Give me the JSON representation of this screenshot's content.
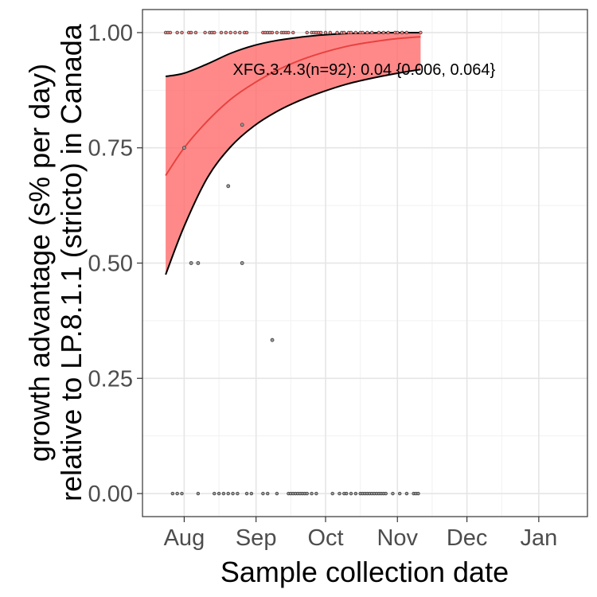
{
  "chart_data": {
    "type": "line",
    "xlabel": "Sample collection date",
    "ylabel_line1": "growth advantage (s% per day)",
    "ylabel_line2": "relative to LP.8.1.1 (stricto) in Canada",
    "x_axis": {
      "type": "date",
      "range": [
        "2025-07-14",
        "2026-01-22"
      ]
    },
    "y_axis": {
      "range": [
        -0.05,
        1.05
      ]
    },
    "x_ticks": [
      {
        "date": "2025-08-01",
        "label": "Aug"
      },
      {
        "date": "2025-09-01",
        "label": "Sep"
      },
      {
        "date": "2025-10-01",
        "label": "Oct"
      },
      {
        "date": "2025-11-01",
        "label": "Nov"
      },
      {
        "date": "2025-12-01",
        "label": "Dec"
      },
      {
        "date": "2026-01-01",
        "label": "Jan"
      }
    ],
    "y_ticks": [
      {
        "value": 0,
        "label": "0.00"
      },
      {
        "value": 0.25,
        "label": "0.25"
      },
      {
        "value": 0.5,
        "label": "0.50"
      },
      {
        "value": 0.75,
        "label": "0.75"
      },
      {
        "value": 1,
        "label": "1.00"
      }
    ],
    "grid": true,
    "annotation": {
      "text": "XFG.3.4.3(n=92): 0.04 {0.006, 0.064}",
      "date": "2025-08-22",
      "value": 0.908
    },
    "series": [
      {
        "type": "ribbon",
        "color": "#ff6b6b",
        "fill_opacity": 0.8,
        "points": [
          {
            "date": "2025-07-24",
            "fit": 0.69,
            "lower": 0.475,
            "upper": 0.905
          },
          {
            "date": "2025-08-01",
            "fit": 0.75,
            "lower": 0.58,
            "upper": 0.912
          },
          {
            "date": "2025-08-11",
            "fit": 0.808,
            "lower": 0.685,
            "upper": 0.932
          },
          {
            "date": "2025-08-21",
            "fit": 0.855,
            "lower": 0.752,
            "upper": 0.955
          },
          {
            "date": "2025-08-31",
            "fit": 0.89,
            "lower": 0.797,
            "upper": 0.972
          },
          {
            "date": "2025-09-10",
            "fit": 0.918,
            "lower": 0.829,
            "upper": 0.983
          },
          {
            "date": "2025-09-20",
            "fit": 0.94,
            "lower": 0.853,
            "upper": 0.99
          },
          {
            "date": "2025-09-30",
            "fit": 0.957,
            "lower": 0.872,
            "upper": 0.995
          },
          {
            "date": "2025-10-10",
            "fit": 0.97,
            "lower": 0.888,
            "upper": 0.998
          },
          {
            "date": "2025-10-20",
            "fit": 0.979,
            "lower": 0.9,
            "upper": 0.999
          },
          {
            "date": "2025-10-30",
            "fit": 0.986,
            "lower": 0.91,
            "upper": 1.0
          },
          {
            "date": "2025-11-11",
            "fit": 0.991,
            "lower": 0.92,
            "upper": 1.0
          }
        ]
      },
      {
        "type": "scatter",
        "color": "#3a3a3a",
        "points": [
          {
            "date": "2025-07-24",
            "value": 1
          },
          {
            "date": "2025-07-25",
            "value": 1
          },
          {
            "date": "2025-07-26",
            "value": 1
          },
          {
            "date": "2025-07-29",
            "value": 1
          },
          {
            "date": "2025-07-31",
            "value": 1
          },
          {
            "date": "2025-08-03",
            "value": 1
          },
          {
            "date": "2025-08-04",
            "value": 1
          },
          {
            "date": "2025-08-06",
            "value": 1
          },
          {
            "date": "2025-08-10",
            "value": 1
          },
          {
            "date": "2025-08-12",
            "value": 1
          },
          {
            "date": "2025-08-13",
            "value": 1
          },
          {
            "date": "2025-08-14",
            "value": 1
          },
          {
            "date": "2025-08-17",
            "value": 1
          },
          {
            "date": "2025-08-19",
            "value": 1
          },
          {
            "date": "2025-08-21",
            "value": 1
          },
          {
            "date": "2025-08-23",
            "value": 1
          },
          {
            "date": "2025-08-25",
            "value": 1
          },
          {
            "date": "2025-08-27",
            "value": 1
          },
          {
            "date": "2025-08-28",
            "value": 1
          },
          {
            "date": "2025-09-04",
            "value": 1
          },
          {
            "date": "2025-09-05",
            "value": 1
          },
          {
            "date": "2025-09-06",
            "value": 1
          },
          {
            "date": "2025-09-07",
            "value": 1
          },
          {
            "date": "2025-09-08",
            "value": 1
          },
          {
            "date": "2025-09-10",
            "value": 1
          },
          {
            "date": "2025-09-12",
            "value": 1
          },
          {
            "date": "2025-09-13",
            "value": 1
          },
          {
            "date": "2025-09-14",
            "value": 1
          },
          {
            "date": "2025-09-15",
            "value": 1
          },
          {
            "date": "2025-09-17",
            "value": 1
          },
          {
            "date": "2025-09-23",
            "value": 1
          },
          {
            "date": "2025-09-25",
            "value": 1
          },
          {
            "date": "2025-09-26",
            "value": 1
          },
          {
            "date": "2025-09-27",
            "value": 1
          },
          {
            "date": "2025-09-28",
            "value": 1
          },
          {
            "date": "2025-09-29",
            "value": 1
          },
          {
            "date": "2025-10-01",
            "value": 1
          },
          {
            "date": "2025-10-03",
            "value": 1
          },
          {
            "date": "2025-10-06",
            "value": 1
          },
          {
            "date": "2025-10-08",
            "value": 1
          },
          {
            "date": "2025-10-09",
            "value": 1
          },
          {
            "date": "2025-10-11",
            "value": 1
          },
          {
            "date": "2025-10-12",
            "value": 1
          },
          {
            "date": "2025-10-14",
            "value": 1
          },
          {
            "date": "2025-10-16",
            "value": 1
          },
          {
            "date": "2025-10-17",
            "value": 1
          },
          {
            "date": "2025-10-19",
            "value": 1
          },
          {
            "date": "2025-10-21",
            "value": 1
          },
          {
            "date": "2025-10-24",
            "value": 1
          },
          {
            "date": "2025-10-26",
            "value": 1
          },
          {
            "date": "2025-10-28",
            "value": 1
          },
          {
            "date": "2025-10-31",
            "value": 1
          },
          {
            "date": "2025-11-01",
            "value": 1
          },
          {
            "date": "2025-11-03",
            "value": 1
          },
          {
            "date": "2025-11-05",
            "value": 1
          },
          {
            "date": "2025-11-11",
            "value": 1
          },
          {
            "date": "2025-08-26",
            "value": 0.8
          },
          {
            "date": "2025-08-01",
            "value": 0.75
          },
          {
            "date": "2025-08-20",
            "value": 0.667
          },
          {
            "date": "2025-08-04",
            "value": 0.5
          },
          {
            "date": "2025-08-07",
            "value": 0.5
          },
          {
            "date": "2025-08-26",
            "value": 0.5
          },
          {
            "date": "2025-09-08",
            "value": 0.333
          },
          {
            "date": "2025-07-27",
            "value": 0
          },
          {
            "date": "2025-07-29",
            "value": 0
          },
          {
            "date": "2025-07-31",
            "value": 0
          },
          {
            "date": "2025-08-07",
            "value": 0
          },
          {
            "date": "2025-08-14",
            "value": 0
          },
          {
            "date": "2025-08-16",
            "value": 0
          },
          {
            "date": "2025-08-18",
            "value": 0
          },
          {
            "date": "2025-08-20",
            "value": 0
          },
          {
            "date": "2025-08-22",
            "value": 0
          },
          {
            "date": "2025-08-24",
            "value": 0
          },
          {
            "date": "2025-08-28",
            "value": 0
          },
          {
            "date": "2025-08-30",
            "value": 0
          },
          {
            "date": "2025-09-04",
            "value": 0
          },
          {
            "date": "2025-09-06",
            "value": 0
          },
          {
            "date": "2025-09-10",
            "value": 0
          },
          {
            "date": "2025-09-15",
            "value": 0
          },
          {
            "date": "2025-09-16",
            "value": 0
          },
          {
            "date": "2025-09-17",
            "value": 0
          },
          {
            "date": "2025-09-18",
            "value": 0
          },
          {
            "date": "2025-09-19",
            "value": 0
          },
          {
            "date": "2025-09-20",
            "value": 0
          },
          {
            "date": "2025-09-21",
            "value": 0
          },
          {
            "date": "2025-09-22",
            "value": 0
          },
          {
            "date": "2025-09-23",
            "value": 0
          },
          {
            "date": "2025-09-25",
            "value": 0
          },
          {
            "date": "2025-09-27",
            "value": 0
          },
          {
            "date": "2025-10-04",
            "value": 0
          },
          {
            "date": "2025-10-07",
            "value": 0
          },
          {
            "date": "2025-10-09",
            "value": 0
          },
          {
            "date": "2025-10-10",
            "value": 0
          },
          {
            "date": "2025-10-12",
            "value": 0
          },
          {
            "date": "2025-10-14",
            "value": 0
          },
          {
            "date": "2025-10-16",
            "value": 0
          },
          {
            "date": "2025-10-17",
            "value": 0
          },
          {
            "date": "2025-10-18",
            "value": 0
          },
          {
            "date": "2025-10-19",
            "value": 0
          },
          {
            "date": "2025-10-20",
            "value": 0
          },
          {
            "date": "2025-10-21",
            "value": 0
          },
          {
            "date": "2025-10-22",
            "value": 0
          },
          {
            "date": "2025-10-23",
            "value": 0
          },
          {
            "date": "2025-10-24",
            "value": 0
          },
          {
            "date": "2025-10-25",
            "value": 0
          },
          {
            "date": "2025-10-26",
            "value": 0
          },
          {
            "date": "2025-10-27",
            "value": 0
          },
          {
            "date": "2025-10-30",
            "value": 0
          },
          {
            "date": "2025-11-02",
            "value": 0
          },
          {
            "date": "2025-11-05",
            "value": 0
          },
          {
            "date": "2025-11-08",
            "value": 0
          },
          {
            "date": "2025-11-09",
            "value": 0
          },
          {
            "date": "2025-11-10",
            "value": 0
          }
        ]
      }
    ]
  }
}
